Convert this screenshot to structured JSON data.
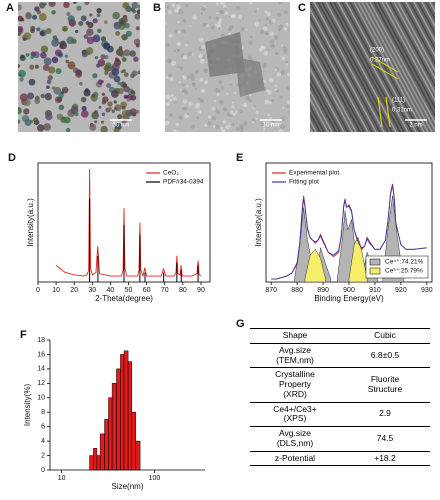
{
  "images": [
    {
      "label": "A",
      "scale_bar": "50 nm"
    },
    {
      "label": "B",
      "scale_bar": "10 nm"
    },
    {
      "label": "C",
      "scale_bar": "2 nm",
      "annotations": [
        "(200)",
        "0.27nm",
        "(111)",
        "0.31nm"
      ]
    }
  ],
  "chart_data": [
    {
      "panel": "D",
      "type": "line",
      "x_label": "2-Theta(degree)",
      "y_label": "Intensity(a.u.)",
      "box": true,
      "xlim": [
        0,
        95
      ],
      "xticks": [
        0,
        10,
        20,
        30,
        40,
        50,
        60,
        70,
        80,
        90
      ],
      "ylim": [
        0,
        100
      ],
      "series": [
        {
          "name": "CeO₂",
          "color": "#e8211c",
          "type": "line",
          "legend": "upper right",
          "x": [
            10,
            15,
            20,
            25,
            27,
            28,
            28.5,
            29,
            30,
            32,
            33,
            34,
            40,
            46,
            47,
            47.5,
            48,
            49,
            55,
            55.8,
            56.3,
            56.8,
            58,
            59,
            60,
            68,
            69.4,
            70.5,
            75,
            76.2,
            76.7,
            77.3,
            78.5,
            79,
            79.6,
            85,
            87.8,
            88.4,
            89,
            90
          ],
          "values": [
            14,
            8,
            6,
            5,
            6,
            10,
            95,
            12,
            6,
            8,
            30,
            7,
            5,
            5,
            10,
            62,
            12,
            5,
            5,
            10,
            50,
            10,
            5,
            12,
            5,
            5,
            11,
            5,
            5,
            8,
            22,
            7,
            6,
            14,
            5,
            5,
            7,
            18,
            6,
            5
          ]
        },
        {
          "name": "PDF#34-0394",
          "color": "#000000",
          "type": "stick",
          "legend": "upper right",
          "x": [
            28.5,
            33.1,
            47.5,
            56.3,
            59.1,
            69.4,
            76.7,
            79.1,
            88.4
          ],
          "values": [
            70,
            22,
            48,
            40,
            8,
            8,
            16,
            10,
            14
          ]
        }
      ]
    },
    {
      "panel": "E",
      "type": "line",
      "x_label": "Binding Energy(eV)",
      "y_label": "Intensity(a.u.)",
      "box": true,
      "xlim": [
        868,
        932
      ],
      "xticks": [
        870,
        880,
        890,
        900,
        910,
        920,
        930
      ],
      "ylim": [
        10,
        90
      ],
      "series": [
        {
          "name": "Ce⁴⁺:74.21%",
          "color": "#b4b4b4",
          "type": "area",
          "legend": "lower right",
          "x": [
            879,
            881,
            882.5,
            884,
            886,
            887.5,
            887.5,
            887.5,
            889,
            891,
            893,
            893,
            895.5,
            897.5,
            898.5,
            899.5,
            901,
            902.5,
            905,
            905,
            905,
            907,
            909,
            911,
            911,
            913,
            915,
            916.8,
            918.5,
            921
          ],
          "values": [
            12,
            35,
            60,
            38,
            20,
            12,
            null,
            12,
            33,
            22,
            12,
            null,
            12,
            40,
            58,
            45,
            52,
            30,
            12,
            null,
            12,
            30,
            20,
            12,
            null,
            12,
            45,
            68,
            42,
            12
          ]
        },
        {
          "name": "Ce³⁺:25.79%",
          "color": "#f5ee6a",
          "type": "area",
          "legend": "lower right",
          "x": [
            883,
            885,
            887,
            889,
            891,
            891,
            900,
            902,
            903.5,
            905,
            907
          ],
          "values": [
            12,
            28,
            32,
            26,
            12,
            null,
            12,
            35,
            40,
            30,
            12
          ]
        },
        {
          "name": "Experimental plot",
          "color": "#e8211c",
          "type": "line",
          "legend": "upper left",
          "x": [
            870,
            872,
            874,
            876,
            878,
            880,
            881,
            882,
            882.5,
            883,
            884,
            885,
            886,
            887,
            888,
            889,
            890,
            892,
            894,
            896,
            897,
            898,
            898.5,
            899,
            900,
            901,
            902,
            903,
            904,
            905,
            906,
            907,
            908,
            910,
            912,
            914,
            915,
            916,
            916.8,
            917.5,
            918,
            920,
            922,
            925,
            930
          ],
          "values": [
            12,
            12,
            13,
            14,
            16,
            22,
            35,
            60,
            68,
            62,
            45,
            40,
            38,
            36,
            38,
            42,
            38,
            30,
            27,
            30,
            40,
            62,
            66,
            60,
            62,
            58,
            45,
            40,
            36,
            32,
            34,
            40,
            37,
            32,
            32,
            38,
            50,
            70,
            76,
            66,
            50,
            35,
            32,
            32,
            33
          ]
        },
        {
          "name": "Fitting plot",
          "color": "#2a3fa8",
          "type": "line",
          "legend": "upper left",
          "x": [
            870,
            872,
            874,
            876,
            878,
            880,
            881,
            882,
            882.5,
            883,
            884,
            885,
            886,
            887,
            888,
            889,
            890,
            892,
            894,
            896,
            897,
            898,
            898.5,
            899,
            900,
            901,
            902,
            903,
            904,
            905,
            906,
            907,
            908,
            910,
            912,
            914,
            915,
            916,
            916.8,
            917.5,
            918,
            920,
            922,
            925,
            930
          ],
          "values": [
            12,
            12,
            13,
            14,
            16,
            23,
            36,
            58,
            66,
            61,
            46,
            40,
            38,
            37,
            38,
            41,
            37,
            30,
            28,
            31,
            41,
            61,
            65,
            61,
            61,
            57,
            45,
            39,
            35,
            33,
            34,
            39,
            36,
            32,
            32,
            38,
            51,
            69,
            75,
            65,
            50,
            35,
            32,
            32,
            33
          ]
        }
      ]
    },
    {
      "panel": "F",
      "type": "histogram",
      "x_label": "Size(nm)",
      "y_label": "Intensity(%)",
      "color": "#e31a1c",
      "log_x": true,
      "xlim": [
        7.5,
        350
      ],
      "xticks": [
        10,
        100
      ],
      "ylim": [
        0,
        18
      ],
      "yticks": [
        0,
        2,
        4,
        6,
        8,
        10,
        12,
        14,
        16,
        18
      ],
      "bins": [
        20,
        22,
        24,
        26,
        29,
        32,
        35,
        39,
        43,
        47,
        52,
        57,
        63,
        70
      ],
      "values": [
        2,
        3,
        2,
        5,
        7,
        10,
        12,
        14,
        16,
        16.5,
        15,
        8,
        4
      ]
    }
  ],
  "table": {
    "label": "G",
    "rows": [
      [
        "Shape",
        "Cubic"
      ],
      [
        "Avg.size\n(TEM,nm)",
        "6.8±0.5"
      ],
      [
        "Crystalline\nProperty\n(XRD)",
        "Fluorite\nStructure"
      ],
      [
        "Ce4+/Ce3+\n(XPS)",
        "2.9"
      ],
      [
        "Avg.size\n(DLS,nm)",
        "74.5"
      ],
      [
        "z-Potential",
        "+18.2"
      ]
    ]
  }
}
